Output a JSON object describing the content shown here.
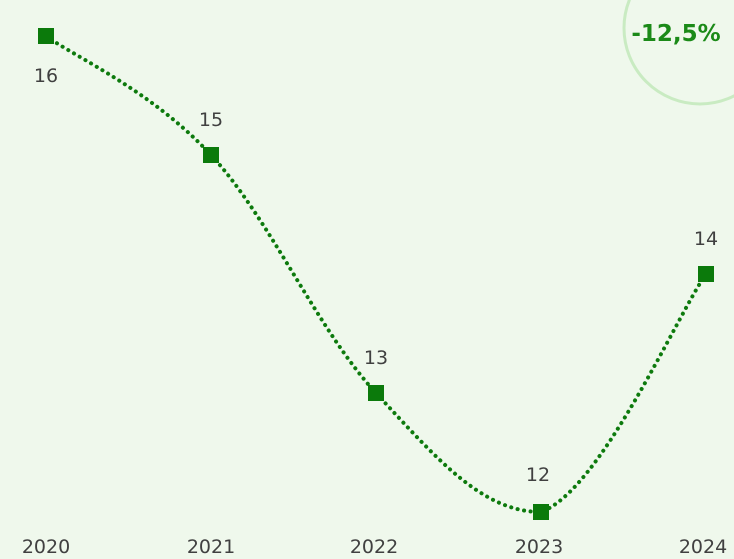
{
  "chart_data": {
    "type": "line",
    "categories": [
      "2020",
      "2021",
      "2022",
      "2023",
      "2024"
    ],
    "values": [
      16,
      15,
      13,
      12,
      14
    ],
    "data_labels": [
      "16",
      "15",
      "13",
      "12",
      "14"
    ],
    "ylim": [
      12,
      16
    ],
    "line_style": "dotted",
    "smooth": true,
    "marker": "square",
    "grid": false,
    "colors": {
      "line": "#0d7a0d",
      "marker": "#0b7a0b",
      "background": "#eff8ec",
      "badge_stroke": "#c9ebc2",
      "badge_text": "#1b8a18"
    }
  },
  "badge": {
    "text": "-12,5%"
  }
}
